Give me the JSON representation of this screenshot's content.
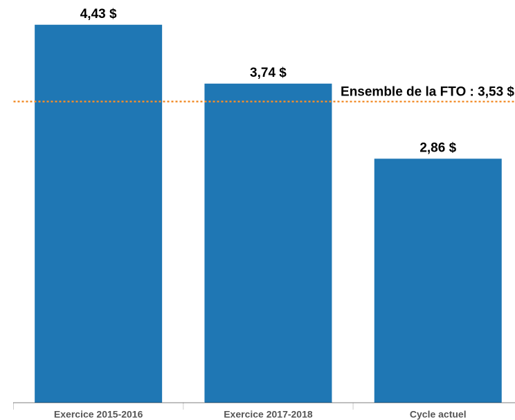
{
  "chart_data": {
    "type": "bar",
    "categories": [
      "Exercice 2015-2016",
      "Exercice 2017-2018",
      "Cycle actuel"
    ],
    "values": [
      4.43,
      3.74,
      2.86
    ],
    "value_labels": [
      "4,43 $",
      "3,74 $",
      "2,86 $"
    ],
    "color": "#1f77b4",
    "ylim": [
      0,
      4.72
    ],
    "reference_line": {
      "value": 3.53,
      "label": "Ensemble de la FTO : 3,53 $",
      "color": "#f28e2b"
    }
  }
}
